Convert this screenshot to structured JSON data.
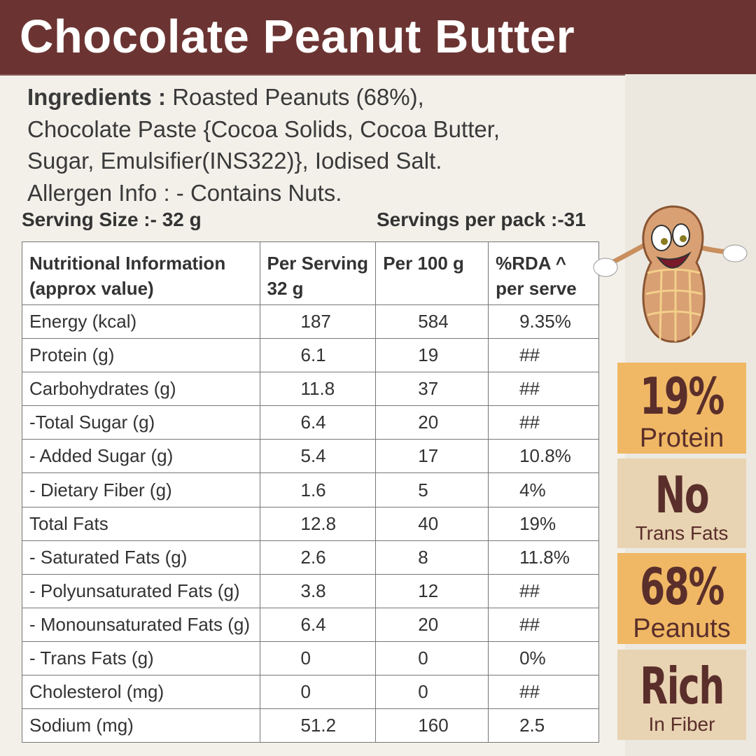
{
  "title": "Chocolate Peanut Butter",
  "ingredients": {
    "label": "Ingredients :",
    "line1": " Roasted Peanuts (68%),",
    "line2": "Chocolate Paste {Cocoa Solids, Cocoa Butter,",
    "line3": "Sugar, Emulsifier(INS322)}, Iodised Salt.",
    "allergen": "Allergen Info : - Contains Nuts."
  },
  "serving_size": "Serving Size :- 32 g",
  "servings_per_pack": "Servings per pack :-31",
  "table": {
    "headers": [
      [
        "Nutritional Information",
        "(approx value)"
      ],
      [
        "Per Serving",
        "32 g"
      ],
      [
        "Per 100 g",
        ""
      ],
      [
        "%RDA ^",
        "per serve"
      ]
    ],
    "rows": [
      [
        "Energy (kcal)",
        "187",
        "584",
        "9.35%"
      ],
      [
        "Protein (g)",
        "6.1",
        "19",
        "##"
      ],
      [
        "Carbohydrates (g)",
        "11.8",
        "37",
        "##"
      ],
      [
        "-Total Sugar (g)",
        "6.4",
        "20",
        "##"
      ],
      [
        "- Added Sugar (g)",
        "5.4",
        "17",
        "10.8%"
      ],
      [
        "- Dietary Fiber (g)",
        "1.6",
        "5",
        "4%"
      ],
      [
        "Total Fats",
        "12.8",
        "40",
        "19%"
      ],
      [
        "- Saturated Fats (g)",
        "2.6",
        "8",
        "11.8%"
      ],
      [
        "- Polyunsaturated Fats (g)",
        "3.8",
        "12",
        "##"
      ],
      [
        "- Monounsaturated Fats (g)",
        "6.4",
        "20",
        "##"
      ],
      [
        "- Trans Fats (g)",
        "0",
        "0",
        "0%"
      ],
      [
        "Cholesterol (mg)",
        "0",
        "0",
        "##"
      ],
      [
        "Sodium (mg)",
        "51.2",
        "160",
        "2.5"
      ]
    ]
  },
  "badges": [
    {
      "big": "19%",
      "small": "Protein",
      "color": "#f0b865"
    },
    {
      "big": "No",
      "small": "Trans Fats",
      "color": "#e8d3b2"
    },
    {
      "big": "68%",
      "small": "Peanuts",
      "color": "#f0b865"
    },
    {
      "big": "Rich",
      "small": "In Fiber",
      "color": "#e8d3b2"
    }
  ],
  "colors": {
    "header_bg": "#6b3432",
    "badge_text": "#5a2e2a"
  },
  "mascot": "peanut-mascot-icon"
}
